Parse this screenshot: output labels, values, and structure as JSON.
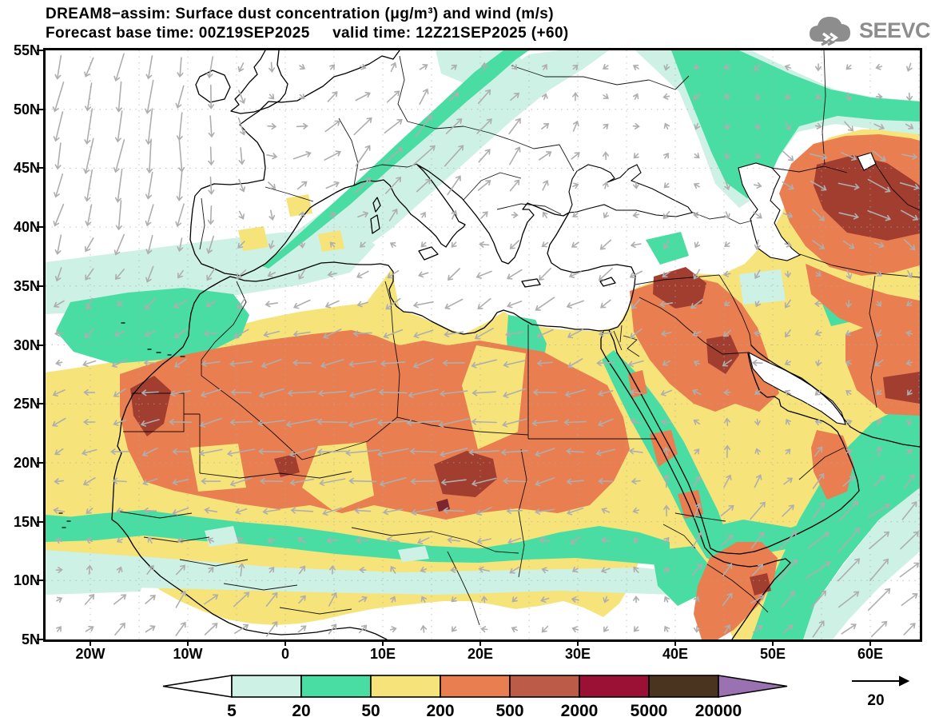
{
  "title": {
    "line1": "DREAM8−assim: Surface dust concentration (μg/m³) and wind (m/s)",
    "line2": "Forecast base time: 00Z19SEP2025     valid time: 12Z21SEP2025 (+60)"
  },
  "logo": {
    "text": "SEEVCCC",
    "color": "#8d8d8d"
  },
  "axes": {
    "lat_ticks": [
      "55N",
      "50N",
      "45N",
      "40N",
      "35N",
      "30N",
      "25N",
      "20N",
      "15N",
      "10N",
      "5N"
    ],
    "lon_ticks": [
      "20W",
      "10W",
      "0",
      "10E",
      "20E",
      "30E",
      "40E",
      "50E",
      "60E"
    ]
  },
  "colorbar": {
    "labels": [
      "5",
      "20",
      "50",
      "200",
      "500",
      "2000",
      "5000",
      "20000"
    ],
    "colors": [
      "#ffffff",
      "#cdf1e4",
      "#4adda3",
      "#f6e47a",
      "#e97e51",
      "#bc5b47",
      "#9b1135",
      "#4a331f",
      "#9a72b1"
    ]
  },
  "wind_ref": {
    "label": "20"
  },
  "palette": {
    "sea_white": "#ffffff",
    "level_5_20": "#cdf1e4",
    "level_20_50": "#4adda3",
    "level_50_200": "#f6e47a",
    "level_200_500": "#e97e51",
    "level_500_2000": "#bc5b47",
    "level_2000_5000": "#9b1135",
    "level_5000_20000": "#4a331f",
    "level_gt_20000": "#9a72b1",
    "map_dark_blob": "#a23e30",
    "map_dark_core": "#7c2630",
    "coastline": "#000000",
    "wind_arrow": "#aeaeae",
    "graticule": "#aaaaaa"
  },
  "chart_data": {
    "type": "heatmap",
    "title": "DREAM8-assim: Surface dust concentration (μg/m³) and wind (m/s)",
    "subtitle": "Forecast base time: 00Z19SEP2025  valid time: 12Z21SEP2025 (+60)",
    "projection": "latitude-longitude map of North Africa, Europe, Middle East",
    "x_axis": {
      "label": "longitude",
      "ticks": [
        "20W",
        "10W",
        "0",
        "10E",
        "20E",
        "30E",
        "40E",
        "50E",
        "60E"
      ],
      "range_deg": [
        -25,
        65
      ]
    },
    "y_axis": {
      "label": "latitude",
      "ticks": [
        "55N",
        "50N",
        "45N",
        "40N",
        "35N",
        "30N",
        "25N",
        "20N",
        "15N",
        "10N",
        "5N"
      ],
      "range_deg": [
        5,
        55
      ]
    },
    "colorbar": {
      "units": "μg/m³",
      "levels": [
        5,
        20,
        50,
        200,
        500,
        2000,
        5000,
        20000
      ],
      "colors": [
        "#ffffff",
        "#cdf1e4",
        "#4adda3",
        "#f6e47a",
        "#e97e51",
        "#bc5b47",
        "#9b1135",
        "#4a331f",
        "#9a72b1"
      ],
      "legend_position": "bottom"
    },
    "wind": {
      "reference_vector_ms": 20,
      "arrow_color": "#aeaeae",
      "style": "gray arrows on ~0.35deg-spaced grid"
    },
    "grid": "dotted graticule every 5 degrees",
    "notable_features": [
      "Broad 50-200 dust band (yellow) covering Sahara, Sahel, Arabia, Iran and Central Asia",
      "200-500 regions (salmon) over Mauritania/Mali/Algeria, Libya/Chad/Sudan, Syria/Iraq/N-Saudi, Oman, Horn of Africa, Central Asia east of the Caspian and SE Iran",
      "2000-5000 cores (dark red-brown) near Western Sahara coast, southern Libya/N Chad (~18E,18N), Syria/N-Iraq (~41E,35N), southern Iraq (~45E,29N), Turkmenistan/Uzbekistan (~55-65E,40-44N), Somali Horn",
      "20-50 (teal) plume from Spain across France toward the Baltic; teal bands along Sahel ~15N, Red Sea, NE of the Black Sea toward the Caspian and over the Arabian Sea",
      "5-20 fringes (pale cyan) around all teal areas; clean air (white) over NE Atlantic, Mediterranean, Black Sea and central Europe",
      "Winds: northerlies over the NE Atlantic, SW-NE flow along the European plume, easterlies over the Sahara, SW monsoon flow over the Arabian Sea"
    ]
  }
}
